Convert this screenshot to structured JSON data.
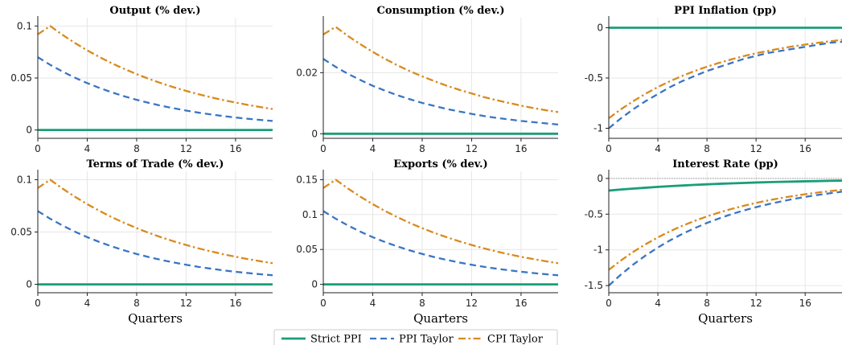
{
  "legend": {
    "entries": [
      "Strict PPI",
      "PPI Taylor",
      "CPI Taylor"
    ],
    "placement": "bottom-center"
  },
  "colors": {
    "strict_ppi": "#1a9e77",
    "ppi_taylor": "#3a75c4",
    "cpi_taylor": "#d98a1e",
    "grid": "#e6e6e6",
    "zero_line": "#9a9a9a"
  },
  "chart_data": [
    {
      "type": "line",
      "title": "Output (% dev.)",
      "xlabel": "",
      "xlim": [
        0,
        19
      ],
      "ylim": [
        -0.008,
        0.108
      ],
      "xticks": [
        0,
        4,
        8,
        12,
        16
      ],
      "yticks": [
        0,
        0.05,
        0.1
      ],
      "ytick_labels": [
        "0",
        "0.05",
        "0.1"
      ],
      "grid": true,
      "x": [
        0,
        1,
        2,
        3,
        4,
        5,
        6,
        7,
        8,
        9,
        10,
        11,
        12,
        13,
        14,
        15,
        16,
        17,
        18,
        19
      ],
      "series": [
        {
          "name": "Strict PPI",
          "values": [
            0,
            0,
            0,
            0,
            0,
            0,
            0,
            0,
            0,
            0,
            0,
            0,
            0,
            0,
            0,
            0,
            0,
            0,
            0,
            0
          ]
        },
        {
          "name": "PPI Taylor",
          "values": [
            0.07,
            0.0627,
            0.0562,
            0.0503,
            0.0451,
            0.0404,
            0.0362,
            0.0324,
            0.029,
            0.026,
            0.0233,
            0.0209,
            0.0187,
            0.0167,
            0.015,
            0.0134,
            0.012,
            0.0108,
            0.0097,
            0.0087
          ]
        },
        {
          "name": "CPI Taylor",
          "values": [
            0.092,
            0.1,
            0.0915,
            0.0837,
            0.0766,
            0.0701,
            0.0641,
            0.0587,
            0.0537,
            0.0491,
            0.0449,
            0.0411,
            0.0376,
            0.0344,
            0.0315,
            0.0288,
            0.0264,
            0.0241,
            0.0221,
            0.0202
          ]
        }
      ]
    },
    {
      "type": "line",
      "title": "Consumption (% dev.)",
      "xlabel": "",
      "xlim": [
        0,
        19
      ],
      "ylim": [
        -0.0015,
        0.038
      ],
      "xticks": [
        0,
        4,
        8,
        12,
        16
      ],
      "yticks": [
        0,
        0.02
      ],
      "ytick_labels": [
        "0",
        "0.02"
      ],
      "grid": true,
      "x": [
        0,
        1,
        2,
        3,
        4,
        5,
        6,
        7,
        8,
        9,
        10,
        11,
        12,
        13,
        14,
        15,
        16,
        17,
        18,
        19
      ],
      "series": [
        {
          "name": "Strict PPI",
          "values": [
            0,
            0,
            0,
            0,
            0,
            0,
            0,
            0,
            0,
            0,
            0,
            0,
            0,
            0,
            0,
            0,
            0,
            0,
            0,
            0
          ]
        },
        {
          "name": "PPI Taylor",
          "values": [
            0.0245,
            0.0219,
            0.0196,
            0.0176,
            0.0157,
            0.0141,
            0.0126,
            0.0113,
            0.0101,
            0.0091,
            0.0081,
            0.0073,
            0.0065,
            0.0058,
            0.0052,
            0.0047,
            0.0042,
            0.0038,
            0.0034,
            0.003
          ]
        },
        {
          "name": "CPI Taylor",
          "values": [
            0.0325,
            0.035,
            0.032,
            0.0293,
            0.0268,
            0.0245,
            0.0224,
            0.0205,
            0.0188,
            0.0172,
            0.0157,
            0.0144,
            0.0132,
            0.012,
            0.011,
            0.0101,
            0.0092,
            0.0084,
            0.0077,
            0.0071
          ]
        }
      ]
    },
    {
      "type": "line",
      "title": "PPI Inflation (pp)",
      "xlabel": "",
      "xlim": [
        0,
        19
      ],
      "ylim": [
        -1.1,
        0.1
      ],
      "xticks": [
        0,
        4,
        8,
        12,
        16
      ],
      "yticks": [
        0,
        -0.5,
        -1
      ],
      "ytick_labels": [
        "0",
        "-0.5",
        "-1"
      ],
      "grid": true,
      "x": [
        0,
        1,
        2,
        3,
        4,
        5,
        6,
        7,
        8,
        9,
        10,
        11,
        12,
        13,
        14,
        15,
        16,
        17,
        18,
        19
      ],
      "series": [
        {
          "name": "Strict PPI",
          "values": [
            0,
            0,
            0,
            0,
            0,
            0,
            0,
            0,
            0,
            0,
            0,
            0,
            0,
            0,
            0,
            0,
            0,
            0,
            0,
            0
          ]
        },
        {
          "name": "PPI Taylor",
          "values": [
            -1.0,
            -0.9,
            -0.81,
            -0.73,
            -0.66,
            -0.59,
            -0.53,
            -0.48,
            -0.43,
            -0.39,
            -0.35,
            -0.31,
            -0.28,
            -0.25,
            -0.23,
            -0.21,
            -0.19,
            -0.17,
            -0.15,
            -0.14
          ]
        },
        {
          "name": "CPI Taylor",
          "values": [
            -0.9,
            -0.81,
            -0.73,
            -0.656,
            -0.59,
            -0.531,
            -0.478,
            -0.43,
            -0.387,
            -0.349,
            -0.314,
            -0.282,
            -0.254,
            -0.229,
            -0.206,
            -0.185,
            -0.167,
            -0.15,
            -0.135,
            -0.12
          ]
        }
      ]
    },
    {
      "type": "line",
      "title": "Terms of Trade (% dev.)",
      "xlabel": "Quarters",
      "xlim": [
        0,
        19
      ],
      "ylim": [
        -0.008,
        0.108
      ],
      "xticks": [
        0,
        4,
        8,
        12,
        16
      ],
      "yticks": [
        0,
        0.05,
        0.1
      ],
      "ytick_labels": [
        "0",
        "0.05",
        "0.1"
      ],
      "grid": true,
      "x": [
        0,
        1,
        2,
        3,
        4,
        5,
        6,
        7,
        8,
        9,
        10,
        11,
        12,
        13,
        14,
        15,
        16,
        17,
        18,
        19
      ],
      "series": [
        {
          "name": "Strict PPI",
          "values": [
            0,
            0,
            0,
            0,
            0,
            0,
            0,
            0,
            0,
            0,
            0,
            0,
            0,
            0,
            0,
            0,
            0,
            0,
            0,
            0
          ]
        },
        {
          "name": "PPI Taylor",
          "values": [
            0.07,
            0.0627,
            0.0562,
            0.0503,
            0.0451,
            0.0404,
            0.0362,
            0.0324,
            0.029,
            0.026,
            0.0233,
            0.0209,
            0.0187,
            0.0167,
            0.015,
            0.0134,
            0.012,
            0.0108,
            0.0097,
            0.0087
          ]
        },
        {
          "name": "CPI Taylor",
          "values": [
            0.092,
            0.1,
            0.0915,
            0.0837,
            0.0766,
            0.0701,
            0.0641,
            0.0587,
            0.0537,
            0.0491,
            0.0449,
            0.0411,
            0.0376,
            0.0344,
            0.0315,
            0.0288,
            0.0264,
            0.0241,
            0.0221,
            0.0202
          ]
        }
      ]
    },
    {
      "type": "line",
      "title": "Exports (% dev.)",
      "xlabel": "Quarters",
      "xlim": [
        0,
        19
      ],
      "ylim": [
        -0.012,
        0.162
      ],
      "xticks": [
        0,
        4,
        8,
        12,
        16
      ],
      "yticks": [
        0,
        0.05,
        0.1,
        0.15
      ],
      "ytick_labels": [
        "0",
        "0.05",
        "0.1",
        "0.15"
      ],
      "grid": true,
      "x": [
        0,
        1,
        2,
        3,
        4,
        5,
        6,
        7,
        8,
        9,
        10,
        11,
        12,
        13,
        14,
        15,
        16,
        17,
        18,
        19
      ],
      "series": [
        {
          "name": "Strict PPI",
          "values": [
            0,
            0,
            0,
            0,
            0,
            0,
            0,
            0,
            0,
            0,
            0,
            0,
            0,
            0,
            0,
            0,
            0,
            0,
            0,
            0
          ]
        },
        {
          "name": "PPI Taylor",
          "values": [
            0.105,
            0.0941,
            0.0843,
            0.0755,
            0.0676,
            0.0606,
            0.0543,
            0.0486,
            0.0436,
            0.039,
            0.035,
            0.0313,
            0.0281,
            0.0251,
            0.0225,
            0.0202,
            0.0181,
            0.0162,
            0.0145,
            0.013
          ]
        },
        {
          "name": "CPI Taylor",
          "values": [
            0.138,
            0.15,
            0.1373,
            0.1256,
            0.1149,
            0.1051,
            0.0962,
            0.088,
            0.0805,
            0.0737,
            0.0674,
            0.0617,
            0.0564,
            0.0516,
            0.0472,
            0.0432,
            0.0395,
            0.0362,
            0.0331,
            0.0303
          ]
        }
      ]
    },
    {
      "type": "line",
      "title": "Interest Rate (pp)",
      "xlabel": "Quarters",
      "xlim": [
        0,
        19
      ],
      "ylim": [
        -1.6,
        0.1
      ],
      "xticks": [
        0,
        4,
        8,
        12,
        16
      ],
      "yticks": [
        0,
        -0.5,
        -1,
        -1.5
      ],
      "ytick_labels": [
        "0",
        "-0.5",
        "-1",
        "-1.5"
      ],
      "grid": true,
      "zero_reference_line": true,
      "x": [
        0,
        1,
        2,
        3,
        4,
        5,
        6,
        7,
        8,
        9,
        10,
        11,
        12,
        13,
        14,
        15,
        16,
        17,
        18,
        19
      ],
      "series": [
        {
          "name": "Strict PPI",
          "values": [
            -0.17,
            -0.155,
            -0.142,
            -0.13,
            -0.118,
            -0.108,
            -0.099,
            -0.09,
            -0.082,
            -0.075,
            -0.069,
            -0.063,
            -0.057,
            -0.052,
            -0.048,
            -0.044,
            -0.04,
            -0.037,
            -0.033,
            -0.03
          ]
        },
        {
          "name": "PPI Taylor",
          "values": [
            -1.5,
            -1.344,
            -1.204,
            -1.079,
            -0.967,
            -0.866,
            -0.776,
            -0.696,
            -0.623,
            -0.559,
            -0.5,
            -0.448,
            -0.402,
            -0.36,
            -0.323,
            -0.289,
            -0.259,
            -0.232,
            -0.208,
            -0.186
          ]
        },
        {
          "name": "CPI Taylor",
          "values": [
            -1.28,
            -1.147,
            -1.027,
            -0.921,
            -0.825,
            -0.739,
            -0.662,
            -0.594,
            -0.532,
            -0.477,
            -0.427,
            -0.383,
            -0.343,
            -0.307,
            -0.275,
            -0.247,
            -0.221,
            -0.198,
            -0.178,
            -0.159
          ]
        }
      ]
    }
  ]
}
